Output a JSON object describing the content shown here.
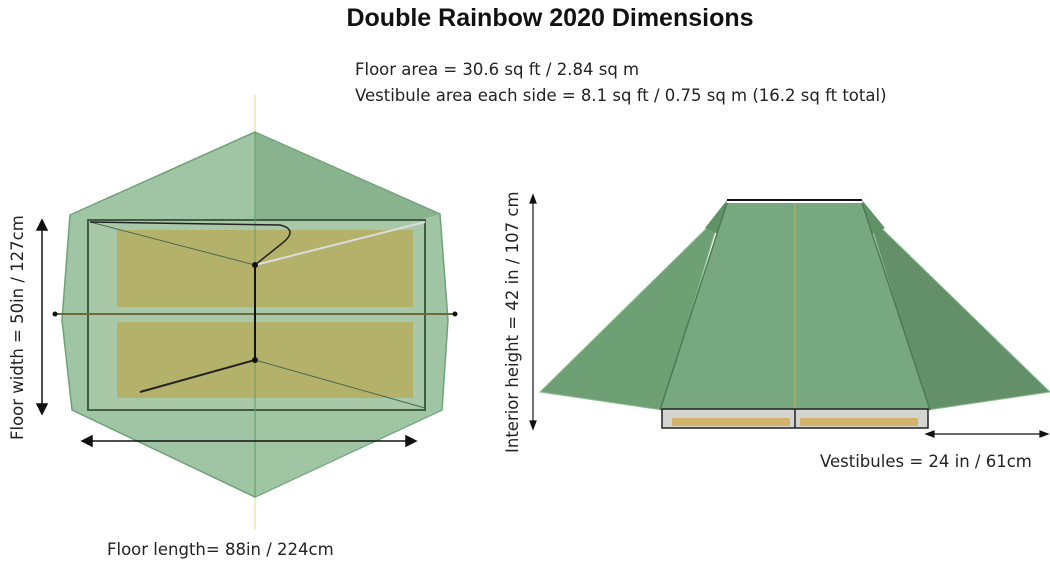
{
  "title": "Double Rainbow 2020 Dimensions",
  "floor_area": "Floor area = 30.6 sq ft / 2.84 sq m",
  "vestibule_area": "Vestibule area each side = 8.1 sq ft / 0.75 sq m  (16.2 sq ft total)",
  "floor_width": "Floor width = 50in / 127cm",
  "floor_length": "Floor length= 88in / 224cm",
  "interior_height": "Interior height = 42 in / 107 cm",
  "vestibules": "Vestibules = 24 in / 61cm",
  "colors": {
    "fly": "#7fae86",
    "floor_mat": "#c2b25a",
    "outline": "#2f4f34"
  }
}
